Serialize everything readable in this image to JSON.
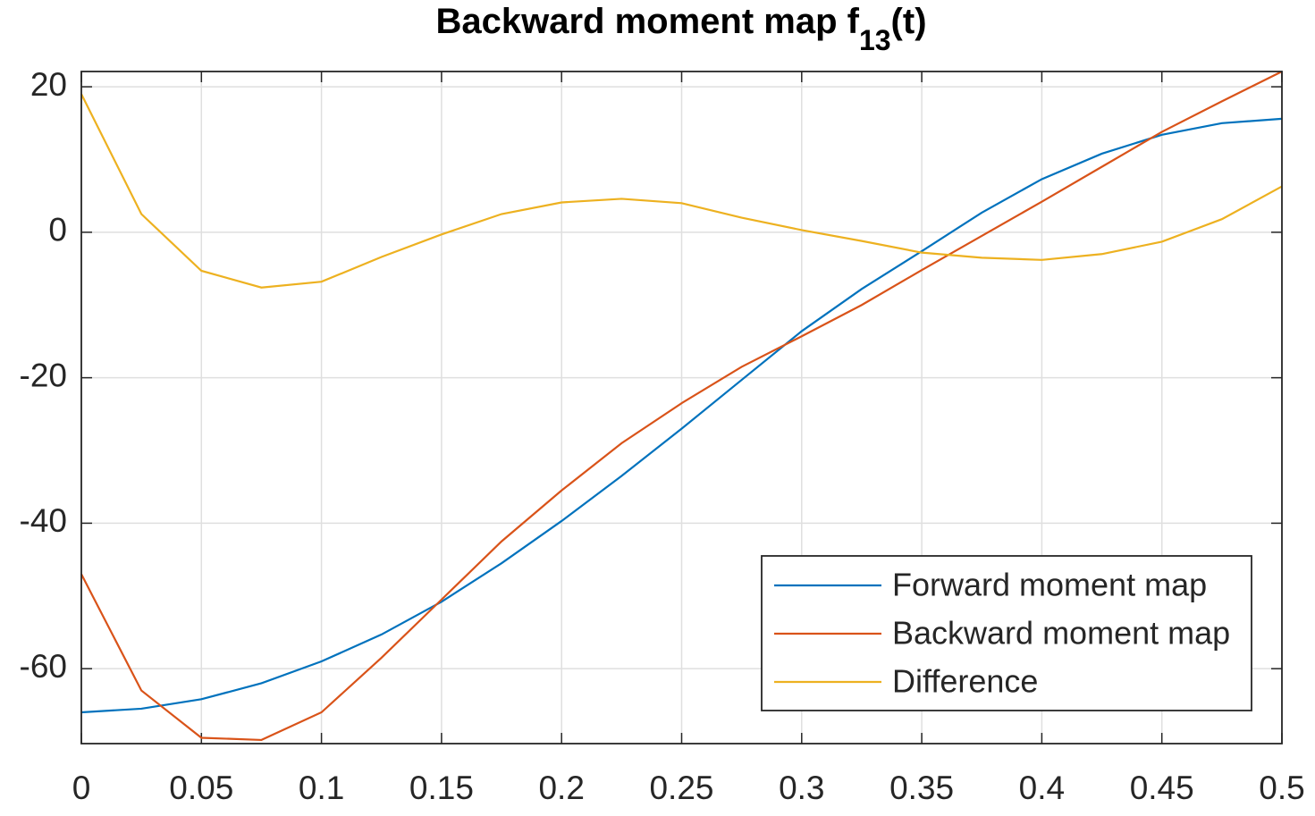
{
  "chart_data": {
    "type": "line",
    "title": [
      "Backward moment map f",
      "13",
      "(t)"
    ],
    "x": [
      0,
      0.025,
      0.05,
      0.075,
      0.1,
      0.125,
      0.15,
      0.175,
      0.2,
      0.225,
      0.25,
      0.275,
      0.3,
      0.325,
      0.35,
      0.375,
      0.4,
      0.425,
      0.45,
      0.475,
      0.5
    ],
    "series": [
      {
        "name": "Forward moment map",
        "color": "#0072BD",
        "values": [
          -66,
          -65.5,
          -64.2,
          -62,
          -59,
          -55.3,
          -50.8,
          -45.5,
          -39.7,
          -33.5,
          -27,
          -20.3,
          -13.6,
          -7.8,
          -2.6,
          2.7,
          7.3,
          10.8,
          13.4,
          15,
          15.6
        ]
      },
      {
        "name": "Backward moment map",
        "color": "#D95319",
        "values": [
          -47,
          -63,
          -69.5,
          -69.8,
          -66,
          -58.5,
          -50.5,
          -42.5,
          -35.5,
          -29,
          -23.5,
          -18.5,
          -14.3,
          -10,
          -5.2,
          -0.5,
          4.2,
          9,
          13.8,
          18,
          22.1
        ]
      },
      {
        "name": "Difference",
        "color": "#EDB120",
        "values": [
          19,
          2.5,
          -5.3,
          -7.6,
          -6.8,
          -3.4,
          -0.3,
          2.5,
          4.1,
          4.6,
          4,
          2,
          0.3,
          -1.2,
          -2.8,
          -3.5,
          -3.8,
          -3,
          -1.3,
          1.8,
          6.3
        ]
      }
    ],
    "xlim": [
      0,
      0.5
    ],
    "xticks": [
      0,
      0.05,
      0.1,
      0.15,
      0.2,
      0.25,
      0.3,
      0.35,
      0.4,
      0.45,
      0.5
    ],
    "ylim": [
      -70.3,
      22.1
    ],
    "yticks": [
      -60,
      -40,
      -20,
      0,
      20
    ],
    "grid": true,
    "legend": "southeast"
  }
}
